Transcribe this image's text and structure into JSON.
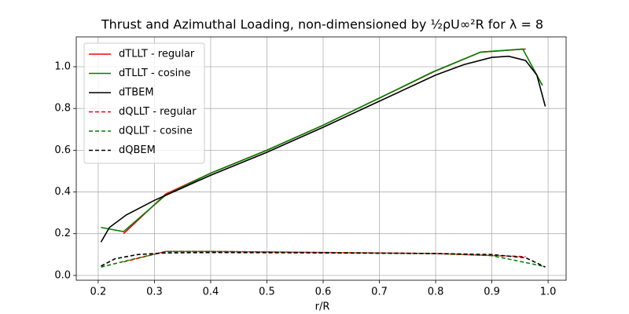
{
  "chart_data": {
    "type": "line",
    "title": "Thrust and Azimuthal Loading, non-dimensioned by ½ρU∞²R for λ = 8",
    "x_label": "r/R",
    "xlim": [
      0.161,
      1.032
    ],
    "ylim": [
      -0.023,
      1.143
    ],
    "xticks": [
      0.2,
      0.3,
      0.4,
      0.5,
      0.6,
      0.7,
      0.8,
      0.9,
      {
        "value": 1,
        "label": "1.0"
      }
    ],
    "yticks": [
      {
        "value": 0,
        "label": "0.0"
      },
      0.2,
      0.4,
      0.6,
      0.8,
      {
        "value": 1,
        "label": "1.0"
      }
    ],
    "grid": true,
    "legend": "upper left",
    "series": [
      {
        "name": "dTLLT - regular",
        "color": "#ff0000",
        "dash": false,
        "x": [
          0.245,
          0.32,
          0.4,
          0.5,
          0.6,
          0.7,
          0.8,
          0.88,
          0.96
        ],
        "values": [
          0.2,
          0.39,
          0.49,
          0.6,
          0.72,
          0.85,
          0.98,
          1.07,
          1.085
        ]
      },
      {
        "name": "dTLLT - cosine",
        "color": "#008000",
        "dash": false,
        "x": [
          0.205,
          0.245,
          0.32,
          0.4,
          0.5,
          0.6,
          0.7,
          0.795,
          0.88,
          0.955,
          0.99
        ],
        "values": [
          0.23,
          0.21,
          0.385,
          0.49,
          0.6,
          0.72,
          0.85,
          0.975,
          1.07,
          1.085,
          0.91
        ]
      },
      {
        "name": "dTBEM",
        "color": "#000000",
        "dash": false,
        "x": [
          0.205,
          0.22,
          0.25,
          0.3,
          0.35,
          0.4,
          0.5,
          0.6,
          0.7,
          0.8,
          0.85,
          0.9,
          0.93,
          0.96,
          0.98,
          0.995
        ],
        "values": [
          0.16,
          0.23,
          0.29,
          0.36,
          0.42,
          0.48,
          0.59,
          0.71,
          0.835,
          0.96,
          1.01,
          1.045,
          1.05,
          1.03,
          0.96,
          0.81
        ]
      },
      {
        "name": "dQLLT - regular",
        "color": "#ff0000",
        "dash": true,
        "x": [
          0.245,
          0.32,
          0.4,
          0.6,
          0.8,
          0.96
        ],
        "values": [
          0.065,
          0.115,
          0.115,
          0.11,
          0.105,
          0.09
        ]
      },
      {
        "name": "dQLLT - cosine",
        "color": "#008000",
        "dash": true,
        "x": [
          0.205,
          0.25,
          0.32,
          0.4,
          0.6,
          0.8,
          0.9,
          0.99
        ],
        "values": [
          0.04,
          0.07,
          0.115,
          0.115,
          0.11,
          0.105,
          0.095,
          0.045
        ]
      },
      {
        "name": "dQBEM",
        "color": "#000000",
        "dash": true,
        "x": [
          0.205,
          0.23,
          0.27,
          0.32,
          0.4,
          0.6,
          0.8,
          0.9,
          0.96,
          0.995
        ],
        "values": [
          0.045,
          0.08,
          0.1,
          0.108,
          0.11,
          0.108,
          0.105,
          0.1,
          0.085,
          0.04
        ]
      }
    ]
  }
}
